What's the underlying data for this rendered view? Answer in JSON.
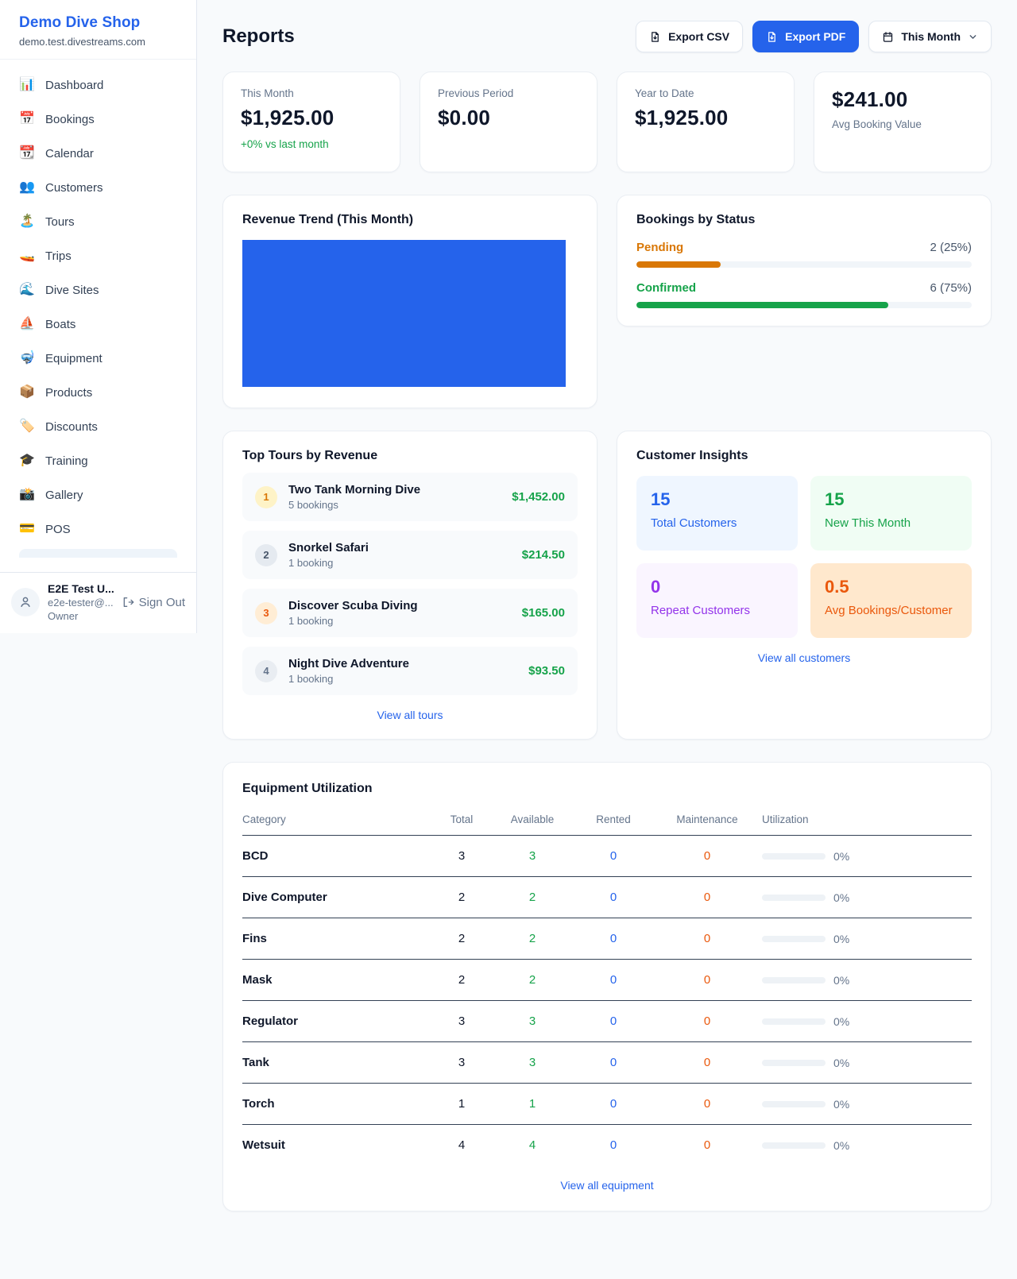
{
  "colors": {
    "accent_blue": "#2563eb",
    "green": "#16a34a",
    "orange_pending": "#d97706",
    "orange_deep": "#ea580c",
    "purple": "#9333ea",
    "muted_text": "#64748b",
    "page_bg": "#f8fafc"
  },
  "sidebar": {
    "shop_name": "Demo Dive Shop",
    "shop_domain": "demo.test.divestreams.com",
    "items": [
      {
        "icon": "bar-chart-icon",
        "emoji": "📊",
        "label": "Dashboard"
      },
      {
        "icon": "calendar-date-icon",
        "emoji": "📅",
        "label": "Bookings"
      },
      {
        "icon": "tearoff-calendar-icon",
        "emoji": "📆",
        "label": "Calendar"
      },
      {
        "icon": "people-icon",
        "emoji": "👥",
        "label": "Customers"
      },
      {
        "icon": "island-icon",
        "emoji": "🏝️",
        "label": "Tours"
      },
      {
        "icon": "speedboat-icon",
        "emoji": "🚤",
        "label": "Trips"
      },
      {
        "icon": "wave-icon",
        "emoji": "🌊",
        "label": "Dive Sites"
      },
      {
        "icon": "sailboat-icon",
        "emoji": "⛵",
        "label": "Boats"
      },
      {
        "icon": "dive-mask-icon",
        "emoji": "🤿",
        "label": "Equipment"
      },
      {
        "icon": "package-icon",
        "emoji": "📦",
        "label": "Products"
      },
      {
        "icon": "tag-icon",
        "emoji": "🏷️",
        "label": "Discounts"
      },
      {
        "icon": "grad-cap-icon",
        "emoji": "🎓",
        "label": "Training"
      },
      {
        "icon": "camera-icon",
        "emoji": "📸",
        "label": "Gallery"
      },
      {
        "icon": "credit-card-icon",
        "emoji": "💳",
        "label": "POS"
      }
    ],
    "user": {
      "name": "E2E Test U...",
      "email": "e2e-tester@...",
      "role": "Owner",
      "sign_out_label": "Sign Out"
    }
  },
  "header": {
    "title": "Reports",
    "export_csv_label": "Export CSV",
    "export_pdf_label": "Export PDF",
    "period_label": "This Month"
  },
  "stats": [
    {
      "label": "This Month",
      "value": "$1,925.00",
      "delta": "+0% vs last month"
    },
    {
      "label": "Previous Period",
      "value": "$0.00"
    },
    {
      "label": "Year to Date",
      "value": "$1,925.00"
    },
    {
      "label": "Avg Booking Value",
      "value": "$241.00"
    }
  ],
  "revenue_trend": {
    "title": "Revenue Trend (This Month)"
  },
  "chart_data": {
    "type": "area",
    "title": "Revenue Trend (This Month)",
    "series": [
      {
        "name": "Revenue",
        "values": []
      }
    ],
    "xlabel": "",
    "ylabel": "",
    "axes_visible": false,
    "grid": false,
    "legend": "none",
    "fill_color": "#2563eb",
    "note": "Plot area renders as a single solid blue filled rectangle with no visible axes, ticks, data labels or gridlines"
  },
  "bookings_by_status": {
    "title": "Bookings by Status",
    "rows": [
      {
        "label": "Pending",
        "value": "2 (25%)",
        "pct": 25,
        "color": "#d97706"
      },
      {
        "label": "Confirmed",
        "value": "6 (75%)",
        "pct": 75,
        "color": "#16a34a"
      }
    ]
  },
  "top_tours": {
    "title": "Top Tours by Revenue",
    "items": [
      {
        "rank": "1",
        "name": "Two Tank Morning Dive",
        "bookings": "5 bookings",
        "revenue": "$1,452.00"
      },
      {
        "rank": "2",
        "name": "Snorkel Safari",
        "bookings": "1 booking",
        "revenue": "$214.50"
      },
      {
        "rank": "3",
        "name": "Discover Scuba Diving",
        "bookings": "1 booking",
        "revenue": "$165.00"
      },
      {
        "rank": "4",
        "name": "Night Dive Adventure",
        "bookings": "1 booking",
        "revenue": "$93.50"
      }
    ],
    "view_all_label": "View all tours"
  },
  "customer_insights": {
    "title": "Customer Insights",
    "tiles": [
      {
        "value": "15",
        "label": "Total Customers",
        "fg": "#2563eb",
        "bg": "#eff6ff"
      },
      {
        "value": "15",
        "label": "New This Month",
        "fg": "#16a34a",
        "bg": "#f0fdf4"
      },
      {
        "value": "0",
        "label": "Repeat Customers",
        "fg": "#9333ea",
        "bg": "#faf5ff"
      },
      {
        "value": "0.5",
        "label": "Avg Bookings/Customer",
        "fg": "#ea580c",
        "bg": "#ffe8cd"
      }
    ],
    "view_all_label": "View all customers"
  },
  "equipment": {
    "title": "Equipment Utilization",
    "columns": [
      "Category",
      "Total",
      "Available",
      "Rented",
      "Maintenance",
      "Utilization"
    ],
    "rows": [
      {
        "category": "BCD",
        "total": "3",
        "available": "3",
        "rented": "0",
        "maintenance": "0",
        "utilization": "0%"
      },
      {
        "category": "Dive Computer",
        "total": "2",
        "available": "2",
        "rented": "0",
        "maintenance": "0",
        "utilization": "0%"
      },
      {
        "category": "Fins",
        "total": "2",
        "available": "2",
        "rented": "0",
        "maintenance": "0",
        "utilization": "0%"
      },
      {
        "category": "Mask",
        "total": "2",
        "available": "2",
        "rented": "0",
        "maintenance": "0",
        "utilization": "0%"
      },
      {
        "category": "Regulator",
        "total": "3",
        "available": "3",
        "rented": "0",
        "maintenance": "0",
        "utilization": "0%"
      },
      {
        "category": "Tank",
        "total": "3",
        "available": "3",
        "rented": "0",
        "maintenance": "0",
        "utilization": "0%"
      },
      {
        "category": "Torch",
        "total": "1",
        "available": "1",
        "rented": "0",
        "maintenance": "0",
        "utilization": "0%"
      },
      {
        "category": "Wetsuit",
        "total": "4",
        "available": "4",
        "rented": "0",
        "maintenance": "0",
        "utilization": "0%"
      }
    ],
    "view_all_label": "View all equipment"
  }
}
